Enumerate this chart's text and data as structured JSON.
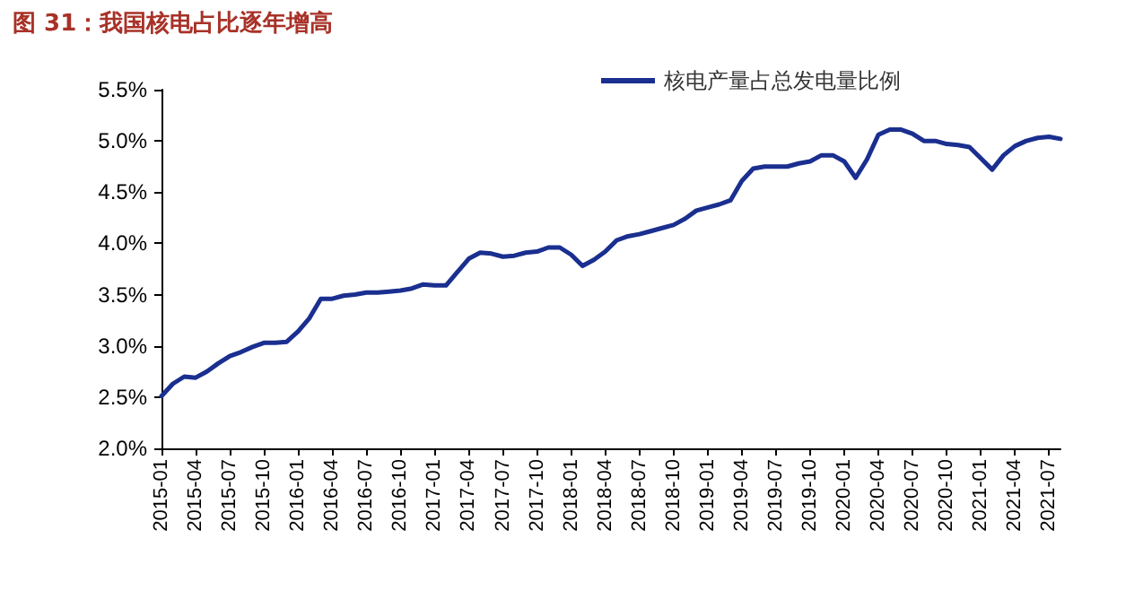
{
  "chart_data": {
    "type": "line",
    "title": "图 31：我国核电占比逐年增高",
    "categories": [
      "2015-01",
      null,
      null,
      "2015-04",
      null,
      null,
      "2015-07",
      null,
      null,
      "2015-10",
      null,
      null,
      "2016-01",
      null,
      null,
      "2016-04",
      null,
      null,
      "2016-07",
      null,
      null,
      "2016-10",
      null,
      null,
      "2017-01",
      null,
      null,
      "2017-04",
      null,
      null,
      "2017-07",
      null,
      null,
      "2017-10",
      null,
      null,
      "2018-01",
      null,
      null,
      "2018-04",
      null,
      null,
      "2018-07",
      null,
      null,
      "2018-10",
      null,
      null,
      "2019-01",
      null,
      null,
      "2019-04",
      null,
      null,
      "2019-07",
      null,
      null,
      "2019-10",
      null,
      null,
      "2020-01",
      null,
      null,
      "2020-04",
      null,
      null,
      "2020-07",
      null,
      null,
      "2020-10",
      null,
      null,
      "2021-01",
      null,
      null,
      "2021-04",
      null,
      null,
      "2021-07",
      null
    ],
    "series": [
      {
        "name": "核电产量占总发电量比例",
        "color": "#1a2f8f",
        "values": [
          2.51,
          2.63,
          2.7,
          2.69,
          2.75,
          2.83,
          2.9,
          2.94,
          2.99,
          3.03,
          3.03,
          3.04,
          3.14,
          3.27,
          3.46,
          3.46,
          3.49,
          3.5,
          3.52,
          3.52,
          3.53,
          3.54,
          3.56,
          3.6,
          3.59,
          3.59,
          3.72,
          3.85,
          3.91,
          3.9,
          3.87,
          3.88,
          3.91,
          3.92,
          3.96,
          3.96,
          3.89,
          3.78,
          3.84,
          3.92,
          4.03,
          4.07,
          4.09,
          4.12,
          4.15,
          4.18,
          4.24,
          4.32,
          4.35,
          4.38,
          4.42,
          4.61,
          4.73,
          4.75,
          4.75,
          4.75,
          4.78,
          4.8,
          4.86,
          4.86,
          4.8,
          4.64,
          4.82,
          5.06,
          5.11,
          5.11,
          5.07,
          5.0,
          5.0,
          4.97,
          4.96,
          4.94,
          4.83,
          4.72,
          4.86,
          4.95,
          5.0,
          5.03,
          5.04,
          5.02
        ]
      }
    ],
    "ylim": [
      2.0,
      5.5
    ],
    "yticks": [
      {
        "value": 2.0,
        "label": "2.0%"
      },
      {
        "value": 2.5,
        "label": "2.5%"
      },
      {
        "value": 3.0,
        "label": "3.0%"
      },
      {
        "value": 3.5,
        "label": "3.5%"
      },
      {
        "value": 4.0,
        "label": "4.0%"
      },
      {
        "value": 4.5,
        "label": "4.5%"
      },
      {
        "value": 5.0,
        "label": "5.0%"
      },
      {
        "value": 5.5,
        "label": "5.5%"
      }
    ],
    "grid": false,
    "legend": "top right",
    "marker": "none",
    "line_style": "solid"
  }
}
